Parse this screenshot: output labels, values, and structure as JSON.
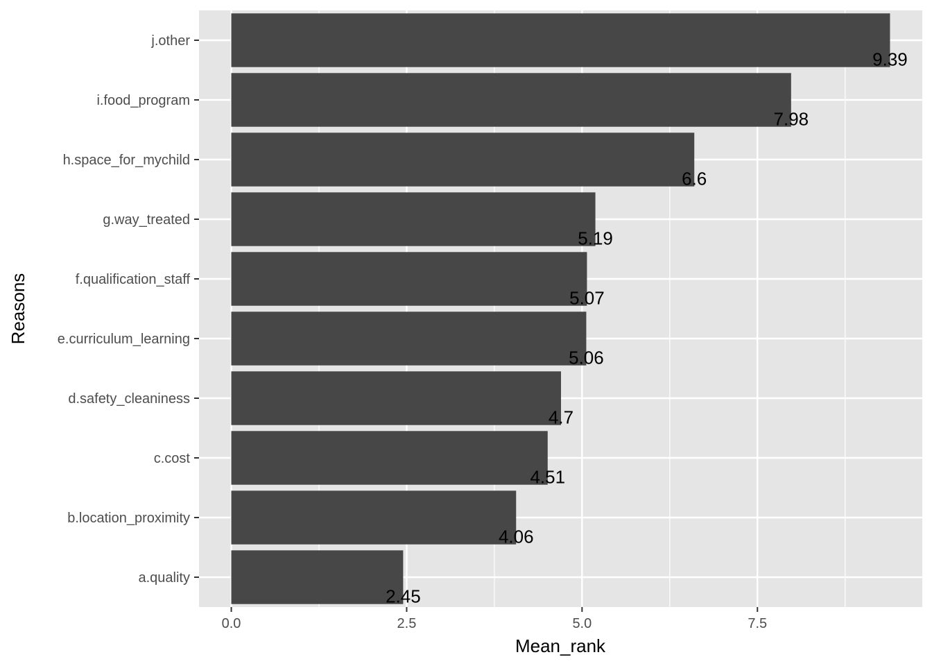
{
  "chart_data": {
    "type": "bar",
    "orientation": "horizontal",
    "categories": [
      "a.quality",
      "b.location_proximity",
      "c.cost",
      "d.safety_cleaniness",
      "e.curriculum_learning",
      "f.qualification_staff",
      "g.way_treated",
      "h.space_for_mychild",
      "i.food_program",
      "j.other"
    ],
    "values": [
      2.45,
      4.06,
      4.51,
      4.7,
      5.06,
      5.07,
      5.19,
      6.6,
      7.98,
      9.39
    ],
    "data_labels": [
      "2.45",
      "4.06",
      "4.51",
      "4.7",
      "5.06",
      "5.07",
      "5.19",
      "6.6",
      "7.98",
      "9.39"
    ],
    "xlabel": "Mean_rank",
    "ylabel": "Reasons",
    "xlim": [
      -0.46,
      9.85
    ],
    "xticks": [
      0,
      2.5,
      5,
      7.5
    ],
    "xtick_labels": [
      "0.0",
      "2.5",
      "5.0",
      "7.5"
    ],
    "grid": true,
    "colors": {
      "bar": "#474747",
      "panel": "#E5E5E5",
      "grid": "#FFFFFF",
      "tick_text": "#4D4D4D",
      "text": "#000000"
    }
  }
}
